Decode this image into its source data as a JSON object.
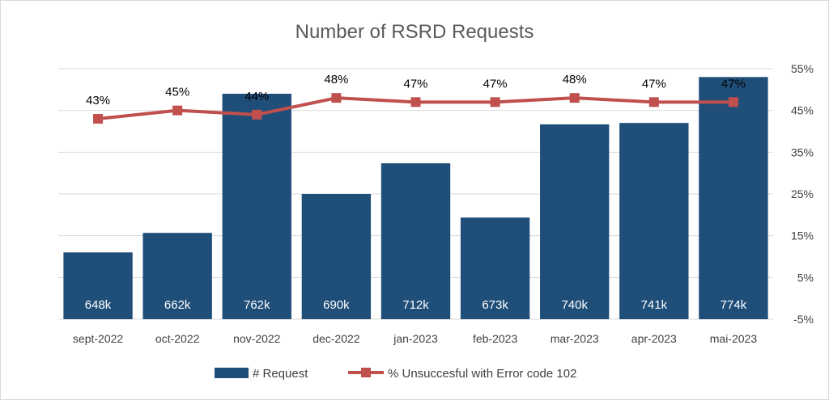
{
  "chart_data": {
    "type": "bar",
    "title": "Number of RSRD Requests",
    "categories": [
      "sept-2022",
      "oct-2022",
      "nov-2022",
      "dec-2022",
      "jan-2023",
      "feb-2023",
      "mar-2023",
      "apr-2023",
      "mai-2023"
    ],
    "series": [
      {
        "name": "# Request",
        "type": "bar",
        "color": "#1f4e79",
        "values": [
          648,
          662,
          762,
          690,
          712,
          673,
          740,
          741,
          774
        ],
        "labels": [
          "648k",
          "662k",
          "762k",
          "690k",
          "712k",
          "673k",
          "740k",
          "741k",
          "774k"
        ],
        "axis": "left",
        "unit": "k"
      },
      {
        "name": "% Unsuccesful with Error code 102",
        "type": "line",
        "color": "#c0504d",
        "values": [
          43,
          45,
          44,
          48,
          47,
          47,
          48,
          47,
          47
        ],
        "labels": [
          "43%",
          "45%",
          "44%",
          "48%",
          "47%",
          "47%",
          "48%",
          "47%",
          "47%"
        ],
        "axis": "right"
      }
    ],
    "left_axis": {
      "visible": false,
      "range": [
        600,
        780
      ]
    },
    "right_axis": {
      "ticks": [
        -5,
        5,
        15,
        25,
        35,
        45,
        55
      ],
      "tick_labels": [
        "-5%",
        "5%",
        "15%",
        "25%",
        "35%",
        "45%",
        "55%"
      ],
      "range": [
        -5,
        55
      ]
    },
    "grid": true,
    "legend_position": "bottom"
  }
}
